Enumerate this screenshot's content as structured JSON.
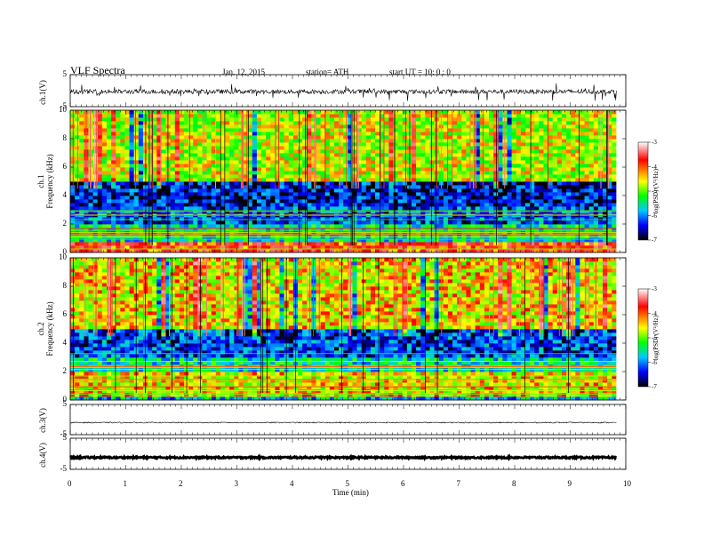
{
  "header": {
    "title": "VLF  Spectra",
    "date": "Jan. 12, 2015",
    "station": "station= ATH",
    "start": "start  UT  =    10: 0  : 0"
  },
  "panels": {
    "ch1_wave_label": "ch.1(V)",
    "ch1_spec_label_a": "ch.1",
    "ch1_spec_label_b": "Frequency  (kHz)",
    "ch2_spec_label_a": "ch.2",
    "ch2_spec_label_b": "Frequency  (kHz)",
    "ch3_wave_label": "ch.3(V)",
    "ch4_wave_label": "ch.4(V)"
  },
  "colorbar": {
    "label": "log(PSD) (V²/Hz)",
    "ticks": [
      "-3",
      "-4",
      "-5",
      "-6",
      "-7"
    ],
    "colors": [
      "#ffffff",
      "#ff0000",
      "#ffff00",
      "#00ff00",
      "#00c8ff",
      "#0000ff",
      "#000000"
    ]
  },
  "chart_data": [
    {
      "type": "line",
      "name": "ch.1(V)",
      "xlim": [
        0,
        10
      ],
      "ylim": [
        -5,
        5
      ],
      "yticks": [
        "5",
        "-5"
      ],
      "baseline": -0.3
    },
    {
      "type": "heatmap",
      "name": "ch.1 spectrogram",
      "xlabel": "",
      "ylabel": "Frequency  (kHz)",
      "xlim": [
        0,
        9.83
      ],
      "ylim": [
        0,
        10
      ],
      "yticks": [
        "10",
        "8",
        "6",
        "4",
        "2",
        "0"
      ],
      "bands": [
        {
          "from": 0.0,
          "to": 0.8,
          "level": -4.2
        },
        {
          "from": 0.8,
          "to": 2.0,
          "level": -5.8
        },
        {
          "from": 2.0,
          "to": 3.2,
          "level": -6.4
        },
        {
          "from": 3.2,
          "to": 5.0,
          "level": -6.6
        },
        {
          "from": 5.0,
          "to": 10.0,
          "level": -5.0
        }
      ],
      "zlim": [
        -7,
        -3
      ]
    },
    {
      "type": "heatmap",
      "name": "ch.2 spectrogram",
      "xlabel": "",
      "ylabel": "Frequency  (kHz)",
      "xlim": [
        0,
        9.83
      ],
      "ylim": [
        0,
        10
      ],
      "yticks": [
        "10",
        "8",
        "6",
        "4",
        "2",
        "0"
      ],
      "bands": [
        {
          "from": 0.0,
          "to": 0.3,
          "level": -6.0
        },
        {
          "from": 0.3,
          "to": 2.0,
          "level": -4.8
        },
        {
          "from": 2.0,
          "to": 3.0,
          "level": -5.8
        },
        {
          "from": 3.0,
          "to": 5.0,
          "level": -6.4
        },
        {
          "from": 5.0,
          "to": 10.0,
          "level": -4.8
        }
      ],
      "zlim": [
        -7,
        -3
      ]
    },
    {
      "type": "line",
      "name": "ch.3(V)",
      "xlim": [
        0,
        10
      ],
      "ylim": [
        -5,
        5
      ],
      "yticks": [
        "5",
        "-5"
      ],
      "baseline": -1.0
    },
    {
      "type": "line",
      "name": "ch.4(V)",
      "xlim": [
        0,
        10
      ],
      "ylim": [
        -5,
        5
      ],
      "yticks": [
        "5",
        "-5"
      ],
      "baseline": -1.2
    }
  ],
  "xaxis": {
    "label": "Time  (min)",
    "ticks": [
      "0",
      "1",
      "2",
      "3",
      "4",
      "5",
      "6",
      "7",
      "8",
      "9",
      "10"
    ],
    "range": [
      0,
      10
    ],
    "data_end": 9.83
  }
}
